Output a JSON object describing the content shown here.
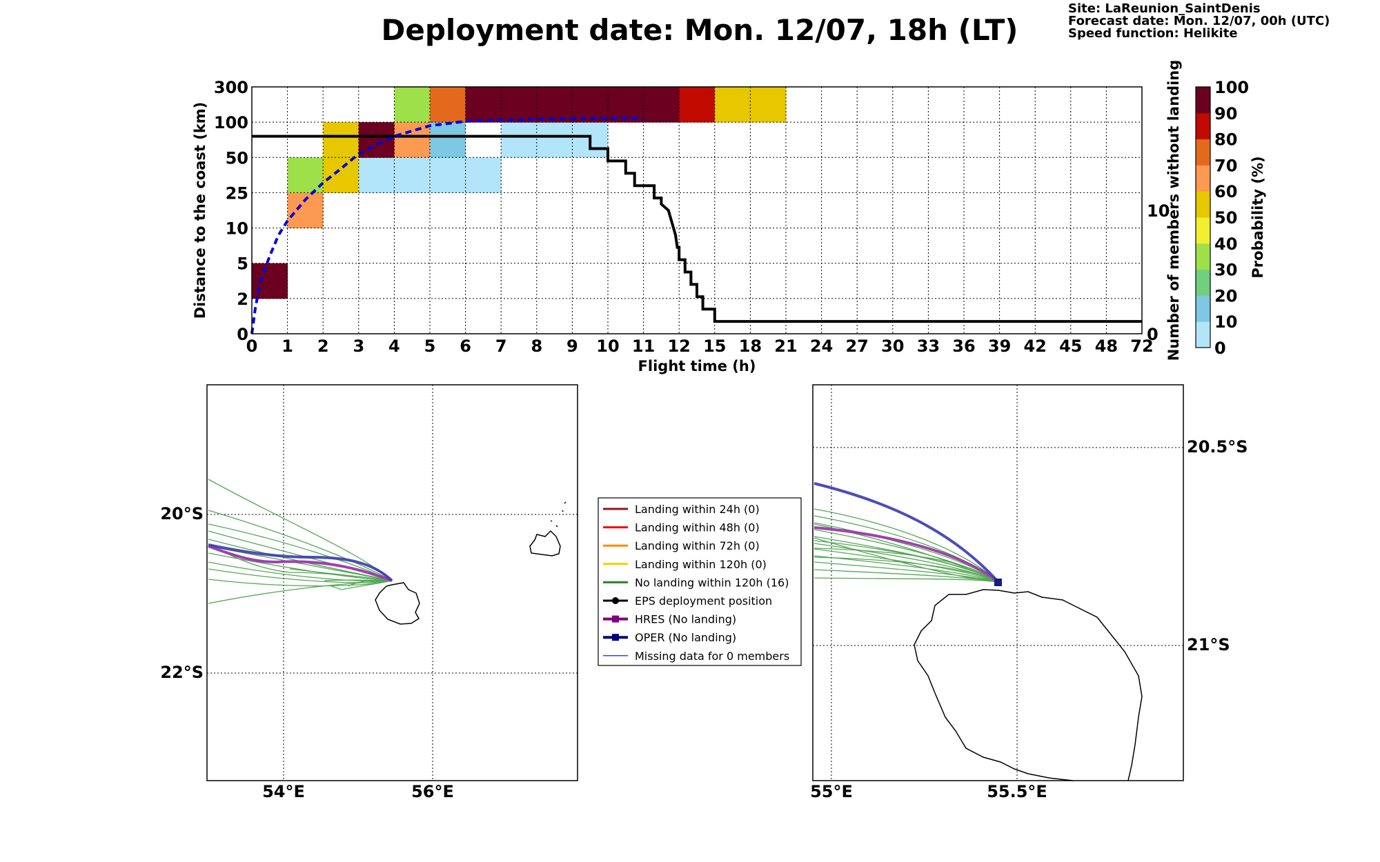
{
  "header": {
    "title": "Deployment date: Mon. 12/07, 18h (LT)",
    "site": "Site: LaReunion_SaintDenis",
    "forecast": "Forecast date: Mon. 12/07, 00h (UTC)",
    "speed": "Speed function: Helikite"
  },
  "chart_data": [
    {
      "type": "heatmap",
      "xlabel": "Flight time (h)",
      "ylabel": "Distance to the coast (km)",
      "ylabel_right": "Number of members without landing",
      "colorbar_label": "Probability (%)",
      "x_ticks": [
        "0",
        "1",
        "2",
        "3",
        "4",
        "5",
        "6",
        "7",
        "8",
        "9",
        "10",
        "11",
        "12",
        "15",
        "18",
        "21",
        "24",
        "27",
        "30",
        "33",
        "36",
        "39",
        "42",
        "45",
        "48",
        "72"
      ],
      "y_ticks": [
        "0",
        "2",
        "5",
        "10",
        "25",
        "50",
        "100",
        "300"
      ],
      "y2_ticks": [
        "0",
        "10"
      ],
      "colorbar_ticks": [
        "0",
        "10",
        "20",
        "30",
        "40",
        "50",
        "60",
        "70",
        "80",
        "90",
        "100"
      ],
      "colorbar_colors": [
        "#b3e5fa",
        "#7ec8e3",
        "#70d080",
        "#9de04a",
        "#f0f030",
        "#e6c700",
        "#fb9a50",
        "#e36a1c",
        "#c10a00",
        "#6b0020"
      ],
      "cells": [
        {
          "x": 0,
          "y": 1,
          "p": 100
        },
        {
          "x": 1,
          "y": 3,
          "p": 60
        },
        {
          "x": 1,
          "y": 4,
          "p": 30
        },
        {
          "x": 2,
          "y": 4,
          "p": 50
        },
        {
          "x": 2,
          "y": 5,
          "p": 50
        },
        {
          "x": 3,
          "y": 4,
          "p": 5
        },
        {
          "x": 3,
          "y": 5,
          "p": 95
        },
        {
          "x": 4,
          "y": 4,
          "p": 5
        },
        {
          "x": 4,
          "y": 5,
          "p": 60
        },
        {
          "x": 4,
          "y": 6,
          "p": 30
        },
        {
          "x": 5,
          "y": 4,
          "p": 5
        },
        {
          "x": 5,
          "y": 5,
          "p": 15
        },
        {
          "x": 5,
          "y": 6,
          "p": 70
        },
        {
          "x": 6,
          "y": 4,
          "p": 5
        },
        {
          "x": 6,
          "y": 6,
          "p": 95
        },
        {
          "x": 7,
          "y": 5,
          "p": 5
        },
        {
          "x": 7,
          "y": 6,
          "p": 95
        },
        {
          "x": 8,
          "y": 5,
          "p": 5
        },
        {
          "x": 8,
          "y": 6,
          "p": 95
        },
        {
          "x": 9,
          "y": 5,
          "p": 5
        },
        {
          "x": 9,
          "y": 6,
          "p": 95
        },
        {
          "x": 10,
          "y": 6,
          "p": 95
        },
        {
          "x": 11,
          "y": 6,
          "p": 95
        },
        {
          "x": 12,
          "y": 6,
          "p": 85
        },
        {
          "x": 13,
          "y": 6,
          "p": 50
        },
        {
          "x": 14,
          "y": 6,
          "p": 50
        }
      ],
      "members_step": [
        [
          0,
          16
        ],
        [
          9.5,
          16
        ],
        [
          9.5,
          15
        ],
        [
          10,
          15
        ],
        [
          10,
          14
        ],
        [
          10.5,
          14
        ],
        [
          10.5,
          13
        ],
        [
          10.75,
          13
        ],
        [
          10.75,
          12
        ],
        [
          11.3,
          12
        ],
        [
          11.3,
          11
        ],
        [
          11.5,
          11
        ],
        [
          11.5,
          10.5
        ],
        [
          11.7,
          10
        ],
        [
          11.8,
          9
        ],
        [
          11.9,
          8
        ],
        [
          11.95,
          7
        ],
        [
          12,
          7
        ],
        [
          12,
          6
        ],
        [
          12.5,
          6
        ],
        [
          12.5,
          5
        ],
        [
          13,
          5
        ],
        [
          13,
          4
        ],
        [
          13.5,
          4
        ],
        [
          13.5,
          3
        ],
        [
          14,
          3
        ],
        [
          14,
          2
        ],
        [
          15,
          2
        ],
        [
          15,
          1
        ],
        [
          72,
          1
        ]
      ],
      "dist_curve": [
        [
          0,
          0
        ],
        [
          0.1,
          1.5
        ],
        [
          0.25,
          3.5
        ],
        [
          0.5,
          6
        ],
        [
          0.75,
          9
        ],
        [
          1,
          13
        ],
        [
          1.5,
          22
        ],
        [
          2,
          32
        ],
        [
          2.5,
          42
        ],
        [
          3,
          55
        ],
        [
          3.5,
          68
        ],
        [
          4,
          80
        ],
        [
          5,
          95
        ],
        [
          6,
          105
        ],
        [
          7,
          112
        ],
        [
          8,
          117
        ],
        [
          9,
          120
        ],
        [
          10,
          122
        ],
        [
          11,
          124
        ]
      ],
      "dist_curve_color": "#0000dd",
      "members_color": "#000000"
    },
    {
      "type": "map",
      "x_ticks": [
        "54°E",
        "56°E"
      ],
      "y_ticks": [
        "20°S",
        "22°S"
      ],
      "lon_range": [
        53,
        58
      ],
      "lat_range": [
        -23.4,
        -18.4
      ]
    },
    {
      "type": "map",
      "x_ticks": [
        "55°E",
        "55.5°E"
      ],
      "y_ticks": [
        "20.5°S",
        "21°S"
      ],
      "lon_range": [
        54.95,
        55.95
      ],
      "lat_range": [
        -21.35,
        -20.35
      ]
    }
  ],
  "legend": {
    "items": [
      {
        "label": "Landing within 24h (0)",
        "color": "#8b1a1a",
        "marker": "none",
        "width": 3
      },
      {
        "label": "Landing within 48h (0)",
        "color": "#ee1111",
        "marker": "none",
        "width": 3
      },
      {
        "label": "Landing within 72h (0)",
        "color": "#ff8c00",
        "marker": "none",
        "width": 3
      },
      {
        "label": "Landing within 120h (0)",
        "color": "#f2d000",
        "marker": "none",
        "width": 3
      },
      {
        "label": "No landing within 120h (16)",
        "color": "#1f8a1f",
        "marker": "none",
        "width": 3
      },
      {
        "label": "EPS deployment position",
        "color": "#000000",
        "marker": "circle",
        "width": 3
      },
      {
        "label": "HRES (No landing)",
        "color": "#800080",
        "marker": "square",
        "width": 4
      },
      {
        "label": "OPER (No landing)",
        "color": "#000080",
        "marker": "square",
        "width": 4
      },
      {
        "label": "Missing data for 0 members",
        "color": "#3344ee",
        "marker": "none",
        "width": 1.5
      }
    ]
  }
}
